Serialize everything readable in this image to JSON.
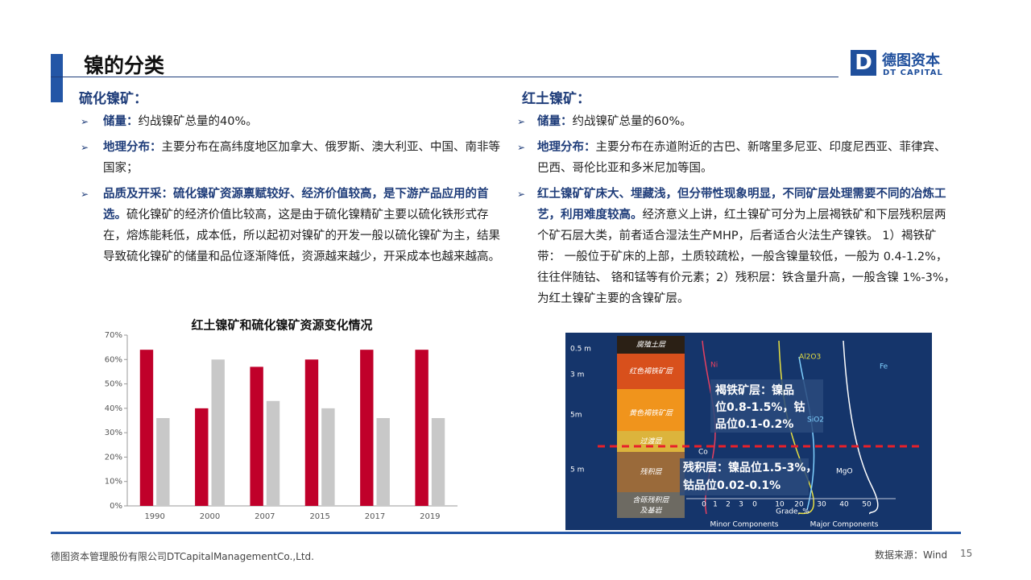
{
  "header": {
    "title": "镍的分类",
    "logo": {
      "mark": "D",
      "name": "德图资本",
      "sub": "DT CAPITAL"
    }
  },
  "sections": [
    {
      "heading": "硫化镍矿：",
      "bullets": [
        {
          "bold": "储量：",
          "text": "约战镍矿总量的40%。"
        },
        {
          "bold": "地理分布：",
          "text": "主要分布在高纬度地区加拿大、俄罗斯、澳大利亚、中国、南非等国家；"
        },
        {
          "bold": "品质及开采：硫化镍矿资源禀赋较好、经济价值较高，是下游产品应用的首选。",
          "text": "硫化镍矿的经济价值比较高，这是由于硫化镍精矿主要以硫化铁形式存在，熔炼能耗低，成本低，所以起初对镍矿的开发一般以硫化镍矿为主，结果导致硫化镍矿的储量和品位逐渐降低，资源越来越少，开采成本也越来越高。"
        }
      ]
    },
    {
      "heading": "红土镍矿：",
      "bullets": [
        {
          "bold": "储量：",
          "text": "约战镍矿总量的60%。"
        },
        {
          "bold": "地理分布：",
          "text": "主要分布在赤道附近的古巴、新喀里多尼亚、印度尼西亚、菲律宾、巴西、哥伦比亚和多米尼加等国。"
        },
        {
          "bold": "红土镍矿矿床大、埋藏浅，但分带性现象明显，不同矿层处理需要不同的冶炼工艺，利用难度较高。",
          "text": "经济意义上讲，红土镍矿可分为上层褐铁矿和下层残积层两个矿石层大类，前者适合湿法生产MHP，后者适合火法生产镍铁。 1）褐铁矿带： 一般位于矿床的上部，土质较疏松，一般含镍量较低，一般为 0.4-1.2%，往往伴随钴、 铬和锰等有价元素；2）残积层：铁含量升高，一般含镍 1%-3%， 为红土镍矿主要的含镍矿层。"
        }
      ]
    }
  ],
  "chart_data": {
    "type": "bar",
    "title": "红土镍矿和硫化镍矿资源变化情况",
    "categories": [
      "1990",
      "2000",
      "2007",
      "2015",
      "2017",
      "2019"
    ],
    "series": [
      {
        "color": "#c0002a",
        "values": [
          64,
          40,
          57,
          60,
          64,
          64
        ]
      },
      {
        "color": "#c8c8c8",
        "values": [
          36,
          60,
          43,
          40,
          36,
          36
        ]
      }
    ],
    "ylim": [
      0,
      70
    ],
    "yticks": [
      {
        "value": 0,
        "label": "0%"
      },
      {
        "value": 10,
        "label": "10%"
      },
      {
        "value": 20,
        "label": "20%"
      },
      {
        "value": 30,
        "label": "30%"
      },
      {
        "value": 40,
        "label": "40%"
      },
      {
        "value": 50,
        "label": "50%"
      },
      {
        "value": 60,
        "label": "60%"
      },
      {
        "value": 70,
        "label": "70%"
      }
    ],
    "grid": false
  },
  "figure": {
    "depths": [
      "0.5 m",
      "3 m",
      "5m",
      "5 m"
    ],
    "layers": [
      "腐殖土层",
      "红色褐铁矿层",
      "黄色褐铁矿层",
      "过渡层",
      "残积层",
      "含砾残积层",
      "及基岩"
    ],
    "elements": [
      "Ni",
      "Al2O3",
      "Fe",
      "SiO2",
      "Co",
      "MgO"
    ],
    "axis_numbers": [
      "0",
      "1",
      "2",
      "3",
      "0",
      "10",
      "20",
      "30",
      "40",
      "50"
    ],
    "axis_title": "Grade, %",
    "axis_groups": [
      "Minor Components",
      "Major Components"
    ],
    "notes": [
      [
        "褐铁矿层：镍品",
        "位0.8-1.5%，钴",
        "品位0.1-0.2%"
      ],
      [
        "残积层：镍品位1.5-3%，",
        "钴品位0.02-0.1%"
      ]
    ]
  },
  "footer": {
    "company": "德图资本管理股份有限公司DTCapitalManagementCo.,Ltd.",
    "source": "数据来源：Wind",
    "page": "15"
  }
}
